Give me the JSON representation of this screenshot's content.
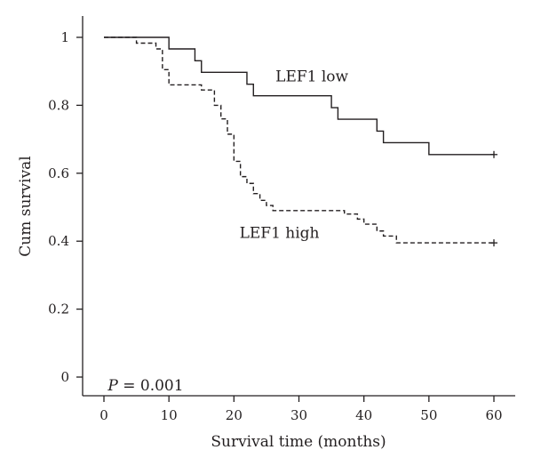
{
  "chart_data": {
    "type": "line",
    "subtype": "kaplan-meier step",
    "title": "",
    "xlabel": "Survival time (months)",
    "ylabel": "Cum survival",
    "xlim": [
      0,
      60
    ],
    "ylim": [
      0,
      1
    ],
    "xticks": [
      0,
      10,
      20,
      30,
      40,
      50,
      60
    ],
    "xtick_labels": [
      "0",
      "10",
      "20",
      "30",
      "40",
      "50",
      "60"
    ],
    "yticks": [
      0,
      0.2,
      0.4,
      0.6,
      0.8,
      1
    ],
    "ytick_labels": [
      "0",
      "0.2",
      "0.4",
      "0.6",
      "0.8",
      "1"
    ],
    "grid": false,
    "series": [
      {
        "name": "LEF1 low",
        "line_style": "solid",
        "steps": [
          [
            0,
            1.0
          ],
          [
            10,
            0.966
          ],
          [
            14,
            0.931
          ],
          [
            15,
            0.897
          ],
          [
            22,
            0.862
          ],
          [
            23,
            0.828
          ],
          [
            35,
            0.793
          ],
          [
            36,
            0.759
          ],
          [
            42,
            0.724
          ],
          [
            43,
            0.69
          ],
          [
            50,
            0.655
          ],
          [
            60,
            0.655
          ]
        ],
        "censored": [
          [
            60,
            0.655
          ]
        ]
      },
      {
        "name": "LEF1 high",
        "line_style": "dashed",
        "steps": [
          [
            0,
            1.0
          ],
          [
            5,
            0.983
          ],
          [
            8,
            0.966
          ],
          [
            9,
            0.905
          ],
          [
            10,
            0.86
          ],
          [
            15,
            0.845
          ],
          [
            17,
            0.8
          ],
          [
            18,
            0.76
          ],
          [
            19,
            0.715
          ],
          [
            20,
            0.635
          ],
          [
            21,
            0.59
          ],
          [
            22,
            0.57
          ],
          [
            23,
            0.54
          ],
          [
            24,
            0.52
          ],
          [
            25,
            0.505
          ],
          [
            26,
            0.49
          ],
          [
            37,
            0.48
          ],
          [
            39,
            0.465
          ],
          [
            40,
            0.45
          ],
          [
            42,
            0.43
          ],
          [
            43,
            0.415
          ],
          [
            45,
            0.395
          ],
          [
            60,
            0.395
          ]
        ],
        "censored": [
          [
            60,
            0.395
          ]
        ]
      }
    ],
    "annotations": [
      {
        "text": "LEF1 low",
        "x": 32,
        "y": 0.87,
        "series": "LEF1 low"
      },
      {
        "text": "LEF1 high",
        "x": 27,
        "y": 0.41,
        "series": "LEF1 high"
      },
      {
        "prefix": "P",
        "text": " = 0.001",
        "x": 0.6,
        "y": 0.0
      }
    ]
  }
}
